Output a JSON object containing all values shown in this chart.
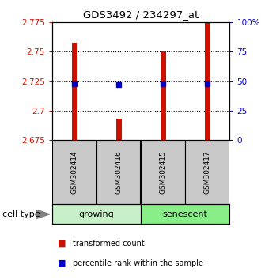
{
  "title": "GDS3492 / 234297_at",
  "samples": [
    "GSM302414",
    "GSM302416",
    "GSM302415",
    "GSM302417"
  ],
  "bar_values": [
    2.758,
    2.693,
    2.75,
    2.775
  ],
  "percentile_values": [
    48,
    47,
    48,
    48
  ],
  "y_min": 2.675,
  "y_max": 2.775,
  "y_ticks": [
    2.675,
    2.7,
    2.725,
    2.75,
    2.775
  ],
  "right_y_ticks": [
    0,
    25,
    50,
    75,
    100
  ],
  "right_y_tick_labels": [
    "0",
    "25",
    "50",
    "75",
    "100%"
  ],
  "bar_color": "#cc1100",
  "dot_color": "#0000cc",
  "group_colors_light": [
    "#c8f0c8",
    "#88ee88"
  ],
  "group_labels": [
    "growing",
    "senescent"
  ],
  "group_ranges": [
    [
      0,
      2
    ],
    [
      2,
      4
    ]
  ],
  "cell_type_label": "cell type",
  "legend_bar_label": "transformed count",
  "legend_dot_label": "percentile rank within the sample",
  "bg_color_samples": "#c8c8c8",
  "bar_width": 0.12
}
